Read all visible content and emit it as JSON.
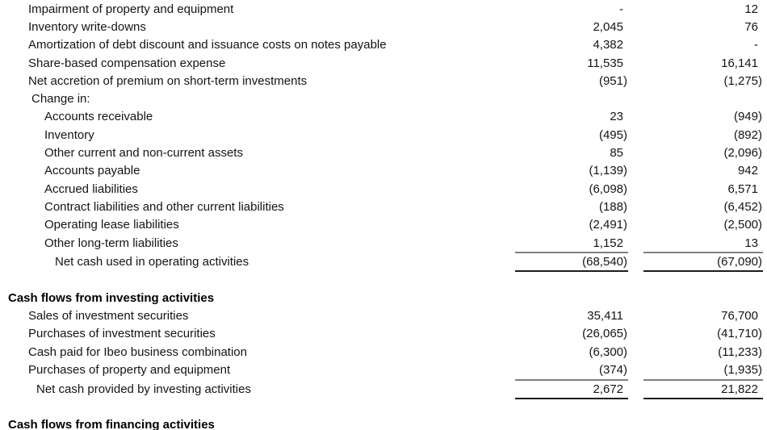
{
  "colors": {
    "background": "#ffffff",
    "text": "#141414",
    "header_text": "#000000",
    "rule_above_total": "#7f7f7f",
    "rule_below_total": "#1c1c1c"
  },
  "statement": {
    "sections": [
      {
        "name": "operating-activities-tail",
        "header": "",
        "rows": [
          {
            "label": "Impairment of property and equipment",
            "indent": "l1",
            "col1": "-",
            "col2": "12",
            "total": false
          },
          {
            "label": "Inventory write-downs",
            "indent": "l1",
            "col1": "2,045",
            "col2": "76",
            "total": false
          },
          {
            "label": "Amortization of debt discount and issuance costs on notes payable",
            "indent": "l1",
            "col1": "4,382",
            "col2": "-",
            "total": false
          },
          {
            "label": "Share-based compensation expense",
            "indent": "l1",
            "col1": "11,535",
            "col2": "16,141",
            "total": false
          },
          {
            "label": "Net accretion of premium on short-term investments",
            "indent": "l1",
            "col1": "(951)",
            "col2": "(1,275)",
            "total": false
          },
          {
            "label": "Change in:",
            "indent": "l1b",
            "col1": "",
            "col2": "",
            "total": false
          },
          {
            "label": "Accounts receivable",
            "indent": "l2",
            "col1": "23",
            "col2": "(949)",
            "total": false
          },
          {
            "label": "Inventory",
            "indent": "l2",
            "col1": "(495)",
            "col2": "(892)",
            "total": false
          },
          {
            "label": "Other current and non-current assets",
            "indent": "l2",
            "col1": "85",
            "col2": "(2,096)",
            "total": false
          },
          {
            "label": "Accounts payable",
            "indent": "l2",
            "col1": "(1,139)",
            "col2": "942",
            "total": false
          },
          {
            "label": "Accrued liabilities",
            "indent": "l2",
            "col1": "(6,098)",
            "col2": "6,571",
            "total": false
          },
          {
            "label": "Contract liabilities and other current liabilities",
            "indent": "l2",
            "col1": "(188)",
            "col2": "(6,452)",
            "total": false
          },
          {
            "label": "Operating lease liabilities",
            "indent": "l2",
            "col1": "(2,491)",
            "col2": "(2,500)",
            "total": false
          },
          {
            "label": "Other long-term liabilities",
            "indent": "l2",
            "col1": "1,152",
            "col2": "13",
            "total": false
          },
          {
            "label": "Net cash used in operating activities",
            "indent": "total-op",
            "col1": "(68,540)",
            "col2": "(67,090)",
            "total": true
          }
        ]
      },
      {
        "name": "investing-activities",
        "header": "Cash flows from investing activities",
        "rows": [
          {
            "label": "Sales of investment securities",
            "indent": "l1",
            "col1": "35,411",
            "col2": "76,700",
            "total": false
          },
          {
            "label": "Purchases of investment securities",
            "indent": "l1",
            "col1": "(26,065)",
            "col2": "(41,710)",
            "total": false
          },
          {
            "label": "Cash paid for Ibeo business combination",
            "indent": "l1",
            "col1": "(6,300)",
            "col2": "(11,233)",
            "total": false
          },
          {
            "label": "Purchases of property and equipment",
            "indent": "l1",
            "col1": "(374)",
            "col2": "(1,935)",
            "total": false
          },
          {
            "label": "Net cash provided by investing activities",
            "indent": "total-inv",
            "col1": "2,672",
            "col2": "21,822",
            "total": true
          }
        ]
      },
      {
        "name": "financing-activities",
        "header": "Cash flows from financing activities",
        "rows": []
      }
    ]
  }
}
